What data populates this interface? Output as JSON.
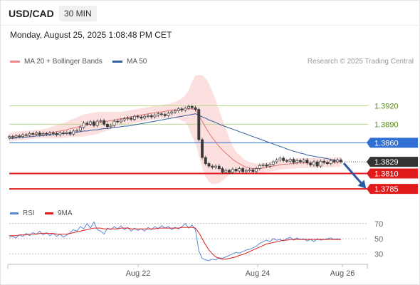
{
  "header": {
    "pair": "USD/CAD",
    "timeframe": "30 MIN",
    "datetime": "Monday, August 25, 2025 1:08:48 PM CET"
  },
  "legend": {
    "ma20_label": "MA 20 + Bollinger Bands",
    "ma50_label": "MA 50",
    "credit": "Research © 2025 Trading Central",
    "rsi_label": "RSI",
    "ma9_label": "9MA"
  },
  "colors": {
    "candle": "#3a3a3a",
    "bollinger_fill": "#fbd9d9",
    "ma20": "#e57373",
    "ma50": "#35609e",
    "green_levels": "#b9d98a",
    "pivot": "#2f6fd3",
    "support": "#e01b1b",
    "last_price_bg": "#333333",
    "rsi": "#5b8ad6",
    "ma9": "#e01b1b",
    "arrow": "#2c5aa0"
  },
  "chart_data": [
    {
      "type": "candlestick",
      "x_ticks": [
        "Aug 22",
        "Aug 24",
        "Aug 26"
      ],
      "ylim": [
        1.3755,
        1.3975
      ],
      "price_axis_labels": [
        "1.3920",
        "1.3890",
        "1.3860",
        "1.3829",
        "1.3810",
        "1.3785"
      ],
      "levels": {
        "resistance_2": 1.392,
        "resistance_1": 1.389,
        "pivot": 1.386,
        "last_price": 1.3829,
        "support_1": 1.381,
        "support_2": 1.3785
      },
      "close": [
        1.387,
        1.3869,
        1.3871,
        1.387,
        1.3873,
        1.3872,
        1.3875,
        1.3874,
        1.3876,
        1.3873,
        1.3875,
        1.3874,
        1.3876,
        1.3875,
        1.3873,
        1.3876,
        1.3875,
        1.3877,
        1.3874,
        1.3879,
        1.388,
        1.3885,
        1.3892,
        1.389,
        1.3894,
        1.3888,
        1.3895,
        1.3896,
        1.389,
        1.3886,
        1.3888,
        1.3895,
        1.3894,
        1.3897,
        1.3899,
        1.39,
        1.3898,
        1.3903,
        1.3902,
        1.39,
        1.3903,
        1.3904,
        1.3902,
        1.3905,
        1.3907,
        1.3906,
        1.3904,
        1.3908,
        1.391,
        1.3912,
        1.3915,
        1.3913,
        1.3916,
        1.3919,
        1.3917,
        1.3914,
        1.3865,
        1.3836,
        1.3826,
        1.3822,
        1.382,
        1.3822,
        1.3818,
        1.3812,
        1.3815,
        1.3812,
        1.3817,
        1.3814,
        1.3818,
        1.3813,
        1.3815,
        1.3816,
        1.3813,
        1.3818,
        1.3823,
        1.3824,
        1.3822,
        1.3825,
        1.3829,
        1.3832,
        1.3835,
        1.3831,
        1.383,
        1.3833,
        1.3828,
        1.3831,
        1.3829,
        1.3832,
        1.3827,
        1.3824,
        1.3829,
        1.3822,
        1.383,
        1.3828,
        1.3826,
        1.3831,
        1.3829,
        1.3832,
        1.3829
      ],
      "ma20": [
        1.3869,
        1.387,
        1.3871,
        1.3871,
        1.3872,
        1.3872,
        1.3873,
        1.3873,
        1.3874,
        1.3874,
        1.3875,
        1.3875,
        1.3876,
        1.3877,
        1.3878,
        1.3879,
        1.388,
        1.3881,
        1.3883,
        1.3884,
        1.3885,
        1.3887,
        1.3888,
        1.3889,
        1.389,
        1.3891,
        1.3892,
        1.3893,
        1.3894,
        1.3895,
        1.3896,
        1.3897,
        1.3898,
        1.3899,
        1.39,
        1.3901,
        1.3902,
        1.3903,
        1.3904,
        1.3905,
        1.3906,
        1.3907,
        1.3908,
        1.3909,
        1.391,
        1.391,
        1.3911,
        1.3912,
        1.3913,
        1.3913,
        1.3914,
        1.3914,
        1.3915,
        1.3915,
        1.3915,
        1.3914,
        1.3905,
        1.3895,
        1.3885,
        1.3876,
        1.3868,
        1.3861,
        1.3854,
        1.3848,
        1.3843,
        1.3838,
        1.3833,
        1.3829,
        1.3826,
        1.3823,
        1.382,
        1.3819,
        1.3818,
        1.3818,
        1.3818,
        1.3819,
        1.382,
        1.3821,
        1.3822,
        1.3823,
        1.3824,
        1.3825,
        1.3825,
        1.3826,
        1.3826,
        1.3827,
        1.3827,
        1.3827,
        1.3827,
        1.3827,
        1.3827,
        1.3827,
        1.3828,
        1.3828,
        1.3828,
        1.3828,
        1.3828,
        1.3829,
        1.3829
      ],
      "ma50": [
        1.3867,
        1.3867,
        1.3868,
        1.3868,
        1.3869,
        1.3869,
        1.387,
        1.387,
        1.3871,
        1.3871,
        1.3872,
        1.3872,
        1.3873,
        1.3873,
        1.3874,
        1.3874,
        1.3875,
        1.3875,
        1.3876,
        1.3877,
        1.3877,
        1.3878,
        1.3879,
        1.3879,
        1.388,
        1.3881,
        1.3881,
        1.3882,
        1.3883,
        1.3883,
        1.3884,
        1.3885,
        1.3885,
        1.3886,
        1.3887,
        1.3887,
        1.3888,
        1.3889,
        1.389,
        1.3891,
        1.3892,
        1.3893,
        1.3894,
        1.3895,
        1.3896,
        1.3897,
        1.3898,
        1.3899,
        1.39,
        1.3901,
        1.3902,
        1.3903,
        1.3904,
        1.3905,
        1.3906,
        1.3907,
        1.3905,
        1.3902,
        1.39,
        1.3897,
        1.3895,
        1.3893,
        1.389,
        1.3888,
        1.3886,
        1.3884,
        1.3882,
        1.388,
        1.3878,
        1.3876,
        1.3874,
        1.3872,
        1.387,
        1.3868,
        1.3866,
        1.3864,
        1.3862,
        1.386,
        1.3858,
        1.3856,
        1.3854,
        1.3852,
        1.385,
        1.3848,
        1.3846,
        1.3845,
        1.3843,
        1.3842,
        1.384,
        1.3839,
        1.3838,
        1.3837,
        1.3836,
        1.3835,
        1.3834,
        1.3833,
        1.3832,
        1.3831,
        1.383
      ],
      "bb_width": [
        0.0007,
        0.0007,
        0.0007,
        0.0007,
        0.0007,
        0.0007,
        0.0007,
        0.0007,
        0.0007,
        0.0007,
        0.0007,
        0.0008,
        0.0009,
        0.001,
        0.0011,
        0.0012,
        0.0012,
        0.0013,
        0.0014,
        0.0015,
        0.0016,
        0.0017,
        0.0018,
        0.0018,
        0.0018,
        0.0018,
        0.0018,
        0.0017,
        0.0016,
        0.0015,
        0.0014,
        0.0013,
        0.0012,
        0.0011,
        0.0011,
        0.0011,
        0.0011,
        0.0011,
        0.0011,
        0.0011,
        0.0011,
        0.0011,
        0.0011,
        0.0011,
        0.0011,
        0.0011,
        0.0011,
        0.0011,
        0.0012,
        0.0013,
        0.0015,
        0.0018,
        0.0022,
        0.003,
        0.0045,
        0.0055,
        0.0065,
        0.0075,
        0.008,
        0.008,
        0.0075,
        0.0068,
        0.006,
        0.005,
        0.004,
        0.003,
        0.0022,
        0.0016,
        0.0014,
        0.0012,
        0.0011,
        0.001,
        0.0009,
        0.0008,
        0.0008,
        0.0008,
        0.0008,
        0.0008,
        0.0008,
        0.0008,
        0.0008,
        0.0008,
        0.0008,
        0.0008,
        0.0008,
        0.0008,
        0.0008,
        0.0008,
        0.0008,
        0.0008,
        0.0008,
        0.0008,
        0.0008,
        0.0008,
        0.0008,
        0.0008,
        0.0008,
        0.0008,
        0.0008
      ],
      "projection": {
        "from": 1.3829,
        "to": 1.3785
      }
    },
    {
      "type": "line",
      "ylim": [
        18,
        82
      ],
      "y_ticks": [
        "70",
        "50",
        "30"
      ],
      "series": [
        {
          "name": "RSI",
          "values": [
            52,
            53,
            51,
            55,
            53,
            57,
            54,
            58,
            56,
            60,
            55,
            58,
            54,
            57,
            53,
            56,
            52,
            55,
            58,
            62,
            60,
            66,
            63,
            70,
            64,
            72,
            62,
            60,
            56,
            64,
            62,
            66,
            63,
            67,
            62,
            65,
            60,
            64,
            61,
            63,
            60,
            65,
            62,
            66,
            63,
            67,
            64,
            66,
            62,
            65,
            63,
            66,
            70,
            64,
            68,
            62,
            34,
            24,
            22,
            21,
            23,
            22,
            25,
            24,
            26,
            28,
            30,
            32,
            31,
            33,
            35,
            36,
            38,
            40,
            44,
            46,
            48,
            46,
            50,
            48,
            49,
            47,
            50,
            52,
            48,
            51,
            49,
            50,
            47,
            49,
            46,
            50,
            48,
            49,
            50,
            51,
            49,
            50,
            49
          ]
        },
        {
          "name": "9MA",
          "values": [
            54,
            54,
            54,
            55,
            55,
            55,
            56,
            56,
            56,
            57,
            57,
            57,
            57,
            57,
            56,
            56,
            56,
            56,
            57,
            58,
            59,
            60,
            61,
            62,
            63,
            64,
            64,
            64,
            63,
            63,
            63,
            63,
            63,
            64,
            64,
            64,
            63,
            63,
            63,
            63,
            63,
            63,
            63,
            63,
            64,
            64,
            64,
            64,
            64,
            64,
            64,
            65,
            65,
            65,
            65,
            64,
            58,
            50,
            42,
            35,
            30,
            26,
            24,
            23,
            23,
            24,
            25,
            26,
            28,
            29,
            31,
            33,
            35,
            37,
            39,
            41,
            43,
            44,
            45,
            46,
            47,
            48,
            48,
            49,
            49,
            49,
            49,
            49,
            49,
            49,
            49,
            49,
            49,
            49,
            49,
            49,
            49,
            49,
            49
          ]
        }
      ]
    }
  ]
}
